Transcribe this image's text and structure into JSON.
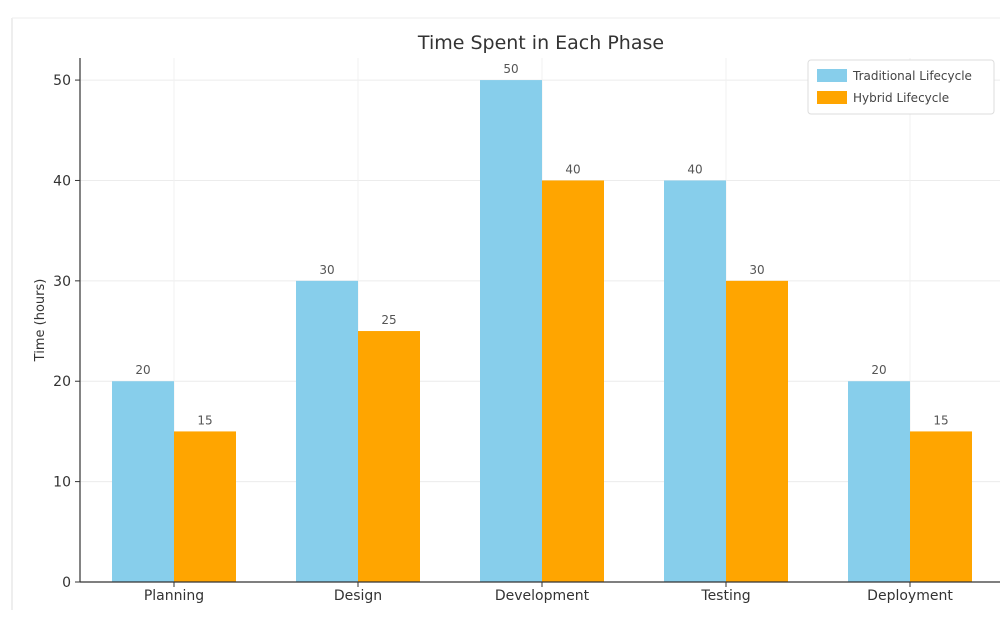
{
  "chart_data": {
    "type": "bar",
    "title": "Time Spent in Each Phase",
    "xlabel": "",
    "ylabel": "Time (hours)",
    "categories": [
      "Planning",
      "Design",
      "Development",
      "Testing",
      "Deployment"
    ],
    "series": [
      {
        "name": "Traditional Lifecycle",
        "values": [
          20,
          30,
          50,
          40,
          20
        ],
        "color": "#87CEEB"
      },
      {
        "name": "Hybrid Lifecycle",
        "values": [
          15,
          25,
          40,
          30,
          15
        ],
        "color": "#FFA500"
      }
    ],
    "ylim": [
      0,
      52
    ],
    "yticks": [
      0,
      10,
      20,
      30,
      40,
      50
    ],
    "grid": true,
    "legend_position": "top-right"
  }
}
